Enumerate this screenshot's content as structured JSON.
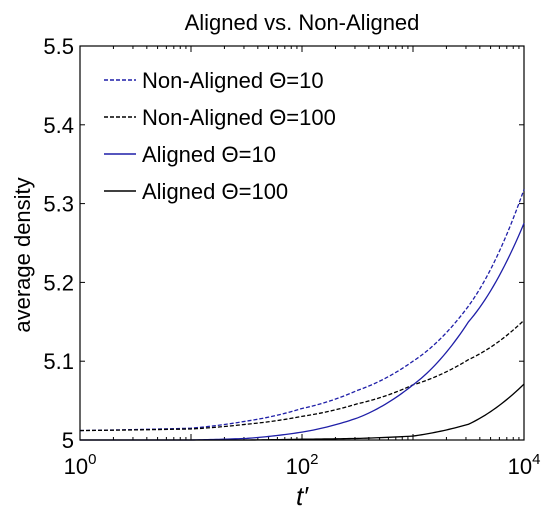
{
  "chart_data": {
    "type": "line",
    "title": "Aligned vs. Non-Aligned",
    "xlabel": "t′",
    "ylabel": "average density",
    "xscale": "log",
    "xlim": [
      1,
      10000
    ],
    "ylim": [
      5.0,
      5.5
    ],
    "yticks": [
      "5",
      "5.1",
      "5.2",
      "5.3",
      "5.4",
      "5.5"
    ],
    "xticks": [
      {
        "base": "10",
        "exp": "0",
        "value": 1
      },
      {
        "base": "10",
        "exp": "2",
        "value": 100
      },
      {
        "base": "10",
        "exp": "4",
        "value": 10000
      }
    ],
    "grid": false,
    "legend_position": "top-left",
    "series": [
      {
        "name": "Non-Aligned Θ=10",
        "color": "#1f1fa8",
        "dash": "dashed",
        "points": [
          [
            1,
            5.012
          ],
          [
            10,
            5.015
          ],
          [
            31.6,
            5.024
          ],
          [
            100,
            5.04
          ],
          [
            316,
            5.063
          ],
          [
            1000,
            5.1
          ],
          [
            3162,
            5.17
          ],
          [
            10000,
            5.318
          ]
        ]
      },
      {
        "name": "Non-Aligned Θ=100",
        "color": "#000000",
        "dash": "dashed",
        "points": [
          [
            1,
            5.012
          ],
          [
            10,
            5.014
          ],
          [
            31.6,
            5.02
          ],
          [
            100,
            5.03
          ],
          [
            316,
            5.046
          ],
          [
            1000,
            5.07
          ],
          [
            3162,
            5.102
          ],
          [
            10000,
            5.152
          ]
        ]
      },
      {
        "name": "Aligned Θ=10",
        "color": "#1f1fa8",
        "dash": "solid",
        "points": [
          [
            1,
            5.0
          ],
          [
            10,
            5.0
          ],
          [
            31.6,
            5.002
          ],
          [
            100,
            5.01
          ],
          [
            316,
            5.028
          ],
          [
            1000,
            5.07
          ],
          [
            3162,
            5.15
          ],
          [
            10000,
            5.275
          ]
        ]
      },
      {
        "name": "Aligned Θ=100",
        "color": "#000000",
        "dash": "solid",
        "points": [
          [
            1,
            5.0
          ],
          [
            10,
            5.0
          ],
          [
            31.6,
            5.0
          ],
          [
            100,
            5.001
          ],
          [
            316,
            5.002
          ],
          [
            1000,
            5.005
          ],
          [
            3162,
            5.02
          ],
          [
            10000,
            5.071
          ]
        ]
      }
    ]
  }
}
